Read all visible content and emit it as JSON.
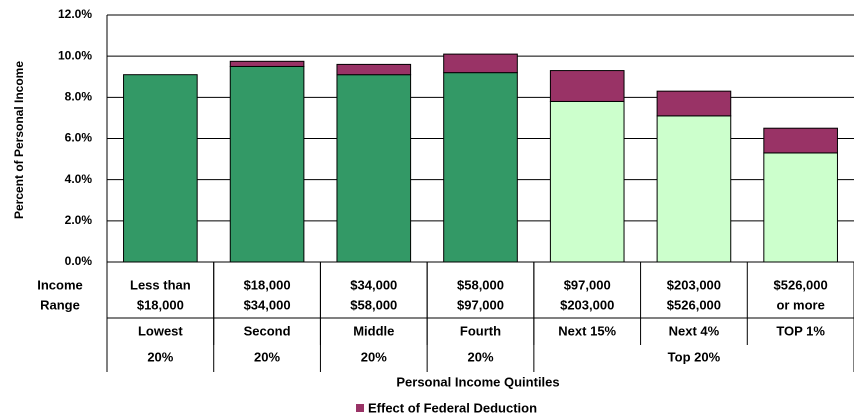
{
  "chart_data": {
    "type": "stacked_bar",
    "y_label": "Percent of Personal Income",
    "x_label": "Personal Income Quintiles",
    "row_label": [
      "Income",
      "Range"
    ],
    "ranges": [
      [
        "Less than",
        "$18,000"
      ],
      [
        "$18,000",
        "$34,000"
      ],
      [
        "$34,000",
        "$58,000"
      ],
      [
        "$58,000",
        "$97,000"
      ],
      [
        "$97,000",
        "$203,000"
      ],
      [
        "$203,000",
        "$526,000"
      ],
      [
        "$526,000",
        "or more"
      ]
    ],
    "categories": [
      "Lowest",
      "Second",
      "Middle",
      "Fourth",
      "Next 15%",
      "Next 4%",
      "TOP 1%"
    ],
    "groups": [
      {
        "label": "20%",
        "size": 1
      },
      {
        "label": "20%",
        "size": 1
      },
      {
        "label": "20%",
        "size": 1
      },
      {
        "label": "20%",
        "size": 1
      },
      {
        "label": "Top 20%",
        "size": 3
      }
    ],
    "series": [
      {
        "colors": [
          "#339966",
          "#339966",
          "#339966",
          "#339966",
          "#ccffcc",
          "#ccffcc",
          "#ccffcc"
        ],
        "values": [
          9.1,
          9.5,
          9.1,
          9.2,
          7.8,
          7.1,
          5.3
        ]
      },
      {
        "name": "Effect of Federal Deduction",
        "color": "#993366",
        "values": [
          0,
          0.25,
          0.5,
          0.9,
          1.5,
          1.2,
          1.2
        ]
      }
    ],
    "ylim": [
      0,
      12
    ],
    "yticks": [
      {
        "value": 0,
        "label": "0.0%"
      },
      {
        "value": 2,
        "label": "2.0%"
      },
      {
        "value": 4,
        "label": "4.0%"
      },
      {
        "value": 6,
        "label": "6.0%"
      },
      {
        "value": 8,
        "label": "8.0%"
      },
      {
        "value": 10,
        "label": "10.0%"
      },
      {
        "value": 12,
        "label": "12.0%"
      }
    ],
    "grid": true
  }
}
